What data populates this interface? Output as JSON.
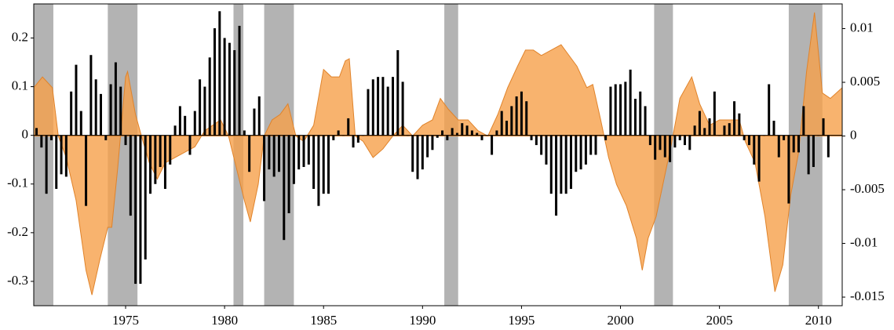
{
  "chart_data": {
    "type": "combo",
    "xlim": [
      1970.36,
      2011.2
    ],
    "xticks": [
      1975,
      1980,
      1985,
      1990,
      1995,
      2000,
      2005,
      2010
    ],
    "ylim": [
      -0.35,
      0.27
    ],
    "yticks": [
      0.2,
      0.1,
      0,
      -0.1,
      -0.2,
      -0.3
    ],
    "y2lim": [
      -0.0158,
      0.0123
    ],
    "y2ticks": [
      0.01,
      0.005,
      0,
      -0.005,
      -0.01,
      -0.015
    ],
    "shaded_spans": [
      [
        1970.36,
        1971.35
      ],
      [
        1974.1,
        1975.6
      ],
      [
        1980.45,
        1980.95
      ],
      [
        1982.0,
        1983.5
      ],
      [
        1991.1,
        1991.8
      ],
      [
        2001.7,
        2002.65
      ],
      [
        2008.5,
        2010.2
      ]
    ],
    "shade_color": "#b3b3b3",
    "series": [
      {
        "type": "area",
        "axis": "y2",
        "color": "#f6a04a",
        "x": [
          1970.36,
          1970.8,
          1971.3,
          1971.6,
          1972,
          1972.5,
          1973,
          1973.3,
          1973.7,
          1974.1,
          1974.3,
          1974.6,
          1975.0,
          1975.1,
          1975.5,
          1975.8,
          1976.2,
          1976.6,
          1977,
          1977.5,
          1978,
          1978.5,
          1979,
          1979.4,
          1979.8,
          1980.2,
          1980.6,
          1981.0,
          1981.3,
          1981.7,
          1982.0,
          1982.4,
          1982.8,
          1983.2,
          1983.6,
          1984.0,
          1984.5,
          1985.0,
          1985.4,
          1985.8,
          1986.1,
          1986.3,
          1986.6,
          1987,
          1987.5,
          1988,
          1988.5,
          1989,
          1989.5,
          1990,
          1990.5,
          1990.9,
          1991.3,
          1991.8,
          1992.3,
          1992.8,
          1993.3,
          1993.8,
          1994.3,
          1994.8,
          1995.2,
          1995.6,
          1996,
          1996.5,
          1997,
          1997.4,
          1997.8,
          1998.3,
          1998.6,
          1999.0,
          1999.4,
          1999.8,
          2000.3,
          2000.8,
          2001.1,
          2001.4,
          2001.8,
          2002.2,
          2002.6,
          2003.0,
          2003.3,
          2003.6,
          2004.0,
          2004.5,
          2005,
          2005.5,
          2006,
          2006.3,
          2006.8,
          2007.3,
          2007.8,
          2008.2,
          2008.6,
          2009.0,
          2009.4,
          2009.8,
          2010.2,
          2010.6,
          2011.2
        ],
        "values": [
          0.0045,
          0.0055,
          0.0045,
          0,
          -0.002,
          -0.006,
          -0.0125,
          -0.0148,
          -0.0115,
          -0.0085,
          -0.0085,
          -0.003,
          0.0055,
          0.006,
          0.002,
          0,
          -0.0025,
          -0.004,
          -0.0025,
          -0.002,
          -0.0015,
          -0.001,
          0.0005,
          0.001,
          0.0015,
          0,
          -0.003,
          -0.006,
          -0.008,
          -0.0045,
          0,
          0.0015,
          0.002,
          0.003,
          0,
          -0.0005,
          0.001,
          0.0062,
          0.0055,
          0.0055,
          0.007,
          0.0072,
          0,
          -0.0005,
          -0.002,
          -0.0012,
          0,
          0.001,
          0,
          0.001,
          0.0015,
          0.0035,
          0.0025,
          0.0015,
          0.0015,
          0.0005,
          0,
          0.002,
          0.0045,
          0.0065,
          0.008,
          0.008,
          0.0075,
          0.008,
          0.0085,
          0.0075,
          0.0065,
          0.0045,
          0.0048,
          0.0015,
          -0.002,
          -0.0045,
          -0.0065,
          -0.0095,
          -0.0125,
          -0.0095,
          -0.0075,
          -0.004,
          -0.0005,
          0.0035,
          0.0045,
          0.0055,
          0.003,
          0.001,
          0.0015,
          0.0015,
          0.0015,
          -0.0005,
          -0.0025,
          -0.0075,
          -0.0145,
          -0.012,
          -0.0055,
          -0.0015,
          0.006,
          0.0115,
          0.004,
          0.0035,
          0.0045
        ]
      },
      {
        "type": "bar",
        "color": "#000000",
        "x": [
          1970.5,
          1970.75,
          1971.0,
          1971.25,
          1971.5,
          1971.75,
          1972.0,
          1972.25,
          1972.5,
          1972.75,
          1973.0,
          1973.25,
          1973.5,
          1973.75,
          1974.0,
          1974.25,
          1974.5,
          1974.75,
          1975.0,
          1975.25,
          1975.5,
          1975.75,
          1976.0,
          1976.25,
          1976.5,
          1976.75,
          1977.0,
          1977.25,
          1977.5,
          1977.75,
          1978.0,
          1978.25,
          1978.5,
          1978.75,
          1979.0,
          1979.25,
          1979.5,
          1979.75,
          1980.0,
          1980.25,
          1980.5,
          1980.75,
          1981.0,
          1981.25,
          1981.5,
          1981.75,
          1982.0,
          1982.25,
          1982.5,
          1982.75,
          1983.0,
          1983.25,
          1983.5,
          1983.75,
          1984.0,
          1984.25,
          1984.5,
          1984.75,
          1985.0,
          1985.25,
          1985.5,
          1985.75,
          1986.0,
          1986.25,
          1986.5,
          1986.75,
          1987.0,
          1987.25,
          1987.5,
          1987.75,
          1988.0,
          1988.25,
          1988.5,
          1988.75,
          1989.0,
          1989.25,
          1989.5,
          1989.75,
          1990.0,
          1990.25,
          1990.5,
          1990.75,
          1991.0,
          1991.25,
          1991.5,
          1991.75,
          1992.0,
          1992.25,
          1992.5,
          1992.75,
          1993.0,
          1993.25,
          1993.5,
          1993.75,
          1994.0,
          1994.25,
          1994.5,
          1994.75,
          1995.0,
          1995.25,
          1995.5,
          1995.75,
          1996.0,
          1996.25,
          1996.5,
          1996.75,
          1997.0,
          1997.25,
          1997.5,
          1997.75,
          1998.0,
          1998.25,
          1998.5,
          1998.75,
          1999.0,
          1999.25,
          1999.5,
          1999.75,
          2000.0,
          2000.25,
          2000.5,
          2000.75,
          2001.0,
          2001.25,
          2001.5,
          2001.75,
          2002.0,
          2002.25,
          2002.5,
          2002.75,
          2003.0,
          2003.25,
          2003.5,
          2003.75,
          2004.0,
          2004.25,
          2004.5,
          2004.75,
          2005.0,
          2005.25,
          2005.5,
          2005.75,
          2006.0,
          2006.25,
          2006.5,
          2006.75,
          2007.0,
          2007.25,
          2007.5,
          2007.75,
          2008.0,
          2008.25,
          2008.5,
          2008.75,
          2009.0,
          2009.25,
          2009.5,
          2009.75,
          2010.0,
          2010.25,
          2010.5
        ],
        "values": [
          0.015,
          -0.025,
          -0.12,
          -0.01,
          -0.11,
          -0.08,
          -0.085,
          0.09,
          0.145,
          0.05,
          -0.145,
          0.165,
          0.115,
          0.085,
          -0.01,
          0.105,
          0.15,
          0.1,
          -0.02,
          -0.165,
          -0.305,
          -0.305,
          -0.255,
          -0.12,
          -0.1,
          -0.065,
          -0.11,
          -0.06,
          0.02,
          0.06,
          0.04,
          -0.04,
          0.05,
          0.115,
          0.1,
          0.16,
          0.22,
          0.255,
          0.2,
          0.19,
          0.175,
          0.225,
          0.01,
          -0.075,
          0.055,
          0.08,
          -0.135,
          -0.07,
          -0.085,
          -0.075,
          -0.215,
          -0.16,
          -0.1,
          -0.07,
          -0.065,
          -0.06,
          -0.11,
          -0.145,
          -0.12,
          -0.12,
          -0.01,
          0.01,
          0.0,
          0.035,
          -0.025,
          -0.015,
          0.0,
          0.095,
          0.115,
          0.12,
          0.12,
          0.1,
          0.12,
          0.175,
          0.11,
          0.0,
          -0.075,
          -0.09,
          -0.07,
          -0.045,
          -0.03,
          -0.005,
          0.01,
          -0.01,
          0.015,
          0.005,
          0.025,
          0.02,
          0.01,
          0.005,
          -0.01,
          0.0,
          -0.04,
          0.01,
          0.05,
          0.03,
          0.06,
          0.08,
          0.09,
          0.07,
          -0.01,
          -0.02,
          -0.04,
          -0.06,
          -0.12,
          -0.165,
          -0.12,
          -0.12,
          -0.11,
          -0.075,
          -0.07,
          -0.06,
          -0.04,
          -0.04,
          0.0,
          -0.01,
          0.1,
          0.105,
          0.105,
          0.11,
          0.135,
          0.075,
          0.09,
          0.06,
          -0.02,
          -0.05,
          -0.03,
          -0.045,
          -0.055,
          -0.025,
          -0.01,
          -0.02,
          -0.03,
          0.02,
          0.05,
          0.015,
          0.035,
          0.09,
          0.0,
          0.02,
          0.025,
          0.07,
          0.045,
          -0.01,
          -0.02,
          -0.06,
          -0.095,
          0.0,
          0.105,
          0.03,
          -0.045,
          -0.01,
          -0.14,
          -0.035,
          -0.035,
          0.06,
          -0.08,
          -0.065,
          0.0,
          0.035,
          -0.045
        ]
      }
    ]
  }
}
